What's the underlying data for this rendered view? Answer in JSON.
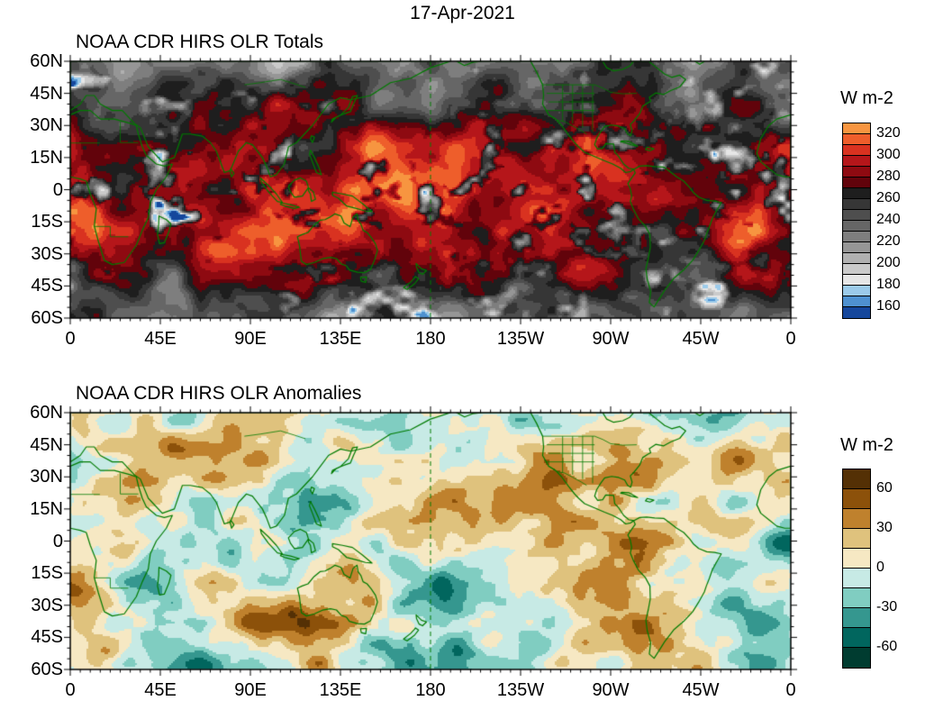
{
  "page": {
    "title": "17-Apr-2021"
  },
  "chart_data": [
    {
      "type": "heatmap",
      "title": "NOAA CDR HIRS OLR Totals",
      "x_axis": {
        "ticks": [
          "0",
          "45E",
          "90E",
          "135E",
          "180",
          "135W",
          "90W",
          "45W",
          "0"
        ],
        "range_deg": [
          0,
          360
        ]
      },
      "y_axis": {
        "ticks": [
          "60N",
          "45N",
          "30N",
          "15N",
          "0",
          "15S",
          "30S",
          "45S",
          "60S"
        ],
        "range_deg": [
          60,
          -60
        ]
      },
      "colorbar": {
        "label": "W m-2",
        "tick_labels": [
          "320",
          "300",
          "280",
          "260",
          "240",
          "220",
          "200",
          "180",
          "160"
        ],
        "cell_span": 10,
        "cell_colors": [
          "#F79540",
          "#EE5E2B",
          "#D93220",
          "#B5161A",
          "#8E0A11",
          "#62030B",
          "#1E1E1E",
          "#363636",
          "#4E4E4E",
          "#666666",
          "#7E7E7E",
          "#969696",
          "#B0B0B0",
          "#CACACA",
          "#E6E6E6",
          "#9CCBEA",
          "#4E91D0",
          "#15479C"
        ]
      },
      "overlay": {
        "coastlines": true,
        "dateline_dashed": true
      },
      "pattern_note": "High OLR (reds ~280-320) across tropical dry zones; low OLR (blues <200) over deep convection; gray midrange elsewhere."
    },
    {
      "type": "heatmap",
      "title": "NOAA CDR HIRS OLR Anomalies",
      "x_axis": {
        "ticks": [
          "0",
          "45E",
          "90E",
          "135E",
          "180",
          "135W",
          "90W",
          "45W",
          "0"
        ],
        "range_deg": [
          0,
          360
        ]
      },
      "y_axis": {
        "ticks": [
          "60N",
          "45N",
          "30N",
          "15N",
          "0",
          "15S",
          "30S",
          "45S",
          "60S"
        ],
        "range_deg": [
          60,
          -60
        ]
      },
      "colorbar": {
        "label": "W m-2",
        "tick_labels": [
          "60",
          "30",
          "0",
          "-30",
          "-60"
        ],
        "cell_span": 15,
        "cell_colors": [
          "#543005",
          "#8C510A",
          "#BF812D",
          "#DFC27D",
          "#F6E8C3",
          "#C7EAE5",
          "#80CDC1",
          "#35978F",
          "#01665E",
          "#003C30"
        ]
      },
      "overlay": {
        "coastlines": true,
        "dateline_dashed": true
      },
      "pattern_note": "Positive anomalies (browns) and negative anomalies (teals) over a near-zero cream background."
    }
  ],
  "style": {
    "coastline_color": "#007B00",
    "axis_color": "#000000",
    "background": "#FFFFFF"
  }
}
